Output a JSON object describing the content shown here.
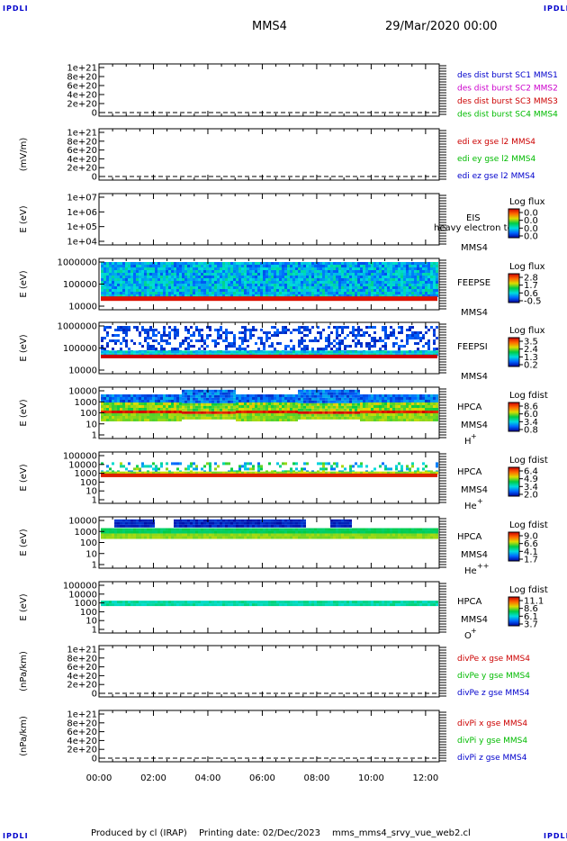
{
  "header": {
    "corner_tl": "IPDLI",
    "corner_tr": "IPDLI",
    "corner_bl": "IPDLI",
    "corner_br": "IPDLI",
    "spacecraft": "MMS4",
    "datetime": "29/Mar/2020 00:00"
  },
  "footer": {
    "producer": "Produced by cl (IRAP)",
    "printing": "Printing date: 02/Dec/2023",
    "script": "mms_mms4_srvy_vue_web2.cl"
  },
  "colors": {
    "blue": "#0000cc",
    "magenta": "#cc00cc",
    "red": "#cc0000",
    "green": "#00bb00",
    "dashed_zero": "#000000"
  },
  "x_axis": {
    "ticks": [
      "00:00",
      "02:00",
      "04:00",
      "06:00",
      "08:00",
      "10:00",
      "12:00"
    ],
    "range_hours": [
      0,
      12.5
    ]
  },
  "chart_data": [
    {
      "type": "line",
      "ylabel": "",
      "yticks": [
        "1e+21",
        "8e+20",
        "6e+20",
        "4e+20",
        "2e+20",
        "0"
      ],
      "legend": [
        {
          "text": "des dist burst SC1 MMS1",
          "color": "#0000cc"
        },
        {
          "text": "des dist burst SC2 MMS2",
          "color": "#cc00cc"
        },
        {
          "text": "des dist burst SC3 MMS3",
          "color": "#cc0000"
        },
        {
          "text": "des dist burst SC4 MMS4",
          "color": "#00bb00"
        }
      ],
      "zero_line": "dashed"
    },
    {
      "type": "line",
      "ylabel": "(mV/m)",
      "yticks": [
        "1e+21",
        "8e+20",
        "6e+20",
        "4e+20",
        "2e+20",
        "0"
      ],
      "legend": [
        {
          "text": "edi ex gse l2 MMS4",
          "color": "#cc0000"
        },
        {
          "text": "edi ey gse l2 MMS4",
          "color": "#00bb00"
        },
        {
          "text": "edi ez gse l2 MMS4",
          "color": "#0000cc"
        }
      ],
      "zero_line": "dashed"
    },
    {
      "type": "heatmap",
      "ylabel": "E (eV)",
      "yticks": [
        "1e+07",
        "1e+06",
        "1e+05",
        "1e+04"
      ],
      "scale": "log",
      "instrument": [
        "EIS",
        "MMS4"
      ],
      "overlay_text": "heavy electron to",
      "cbar_title": "Log flux",
      "cbar_ticks": [
        "0.0",
        "0.0",
        "0.0",
        "0.0"
      ],
      "spectrum": "empty"
    },
    {
      "type": "heatmap",
      "ylabel": "E (eV)",
      "yticks": [
        "1000000",
        "100000",
        "10000"
      ],
      "scale": "log",
      "instrument": [
        "FEEPSE",
        "MMS4"
      ],
      "cbar_title": "Log flux",
      "cbar_ticks": [
        "2.8",
        "1.7",
        "0.6",
        "-0.5"
      ],
      "spectrum": "feeps_e"
    },
    {
      "type": "heatmap",
      "ylabel": "E (eV)",
      "yticks": [
        "1000000",
        "100000",
        "10000"
      ],
      "scale": "log",
      "instrument": [
        "FEEPSI",
        "MMS4"
      ],
      "cbar_title": "Log flux",
      "cbar_ticks": [
        "3.5",
        "2.4",
        "1.3",
        "0.2"
      ],
      "spectrum": "feeps_i"
    },
    {
      "type": "heatmap",
      "ylabel": "E (eV)",
      "yticks": [
        "10000",
        "1000",
        "100",
        "10",
        "1"
      ],
      "scale": "log",
      "instrument": [
        "HPCA",
        "MMS4"
      ],
      "species_base": "H",
      "species_sup": "+",
      "cbar_title": "Log fdist",
      "cbar_ticks": [
        "8.6",
        "6.0",
        "3.4",
        "0.8"
      ],
      "spectrum": "hpca_h"
    },
    {
      "type": "heatmap",
      "ylabel": "E (eV)",
      "yticks": [
        "100000",
        "10000",
        "1000",
        "100",
        "10",
        "1"
      ],
      "scale": "log",
      "instrument": [
        "HPCA",
        "MMS4"
      ],
      "species_base": "He",
      "species_sup": "+",
      "cbar_title": "Log fdist",
      "cbar_ticks": [
        "6.4",
        "4.9",
        "3.4",
        "2.0"
      ],
      "spectrum": "hpca_he1"
    },
    {
      "type": "heatmap",
      "ylabel": "E (eV)",
      "yticks": [
        "10000",
        "1000",
        "100",
        "10",
        "1"
      ],
      "scale": "log",
      "instrument": [
        "HPCA",
        "MMS4"
      ],
      "species_base": "He",
      "species_sup": "++",
      "cbar_title": "Log fdist",
      "cbar_ticks": [
        "9.0",
        "6.6",
        "4.1",
        "1.7"
      ],
      "spectrum": "hpca_he2"
    },
    {
      "type": "heatmap",
      "ylabel": "E (eV)",
      "yticks": [
        "100000",
        "10000",
        "1000",
        "100",
        "10",
        "1"
      ],
      "scale": "log",
      "instrument": [
        "HPCA",
        "MMS4"
      ],
      "species_base": "O",
      "species_sup": "+",
      "cbar_title": "Log fdist",
      "cbar_ticks": [
        "11.1",
        "8.6",
        "6.1",
        "3.7"
      ],
      "spectrum": "hpca_o"
    },
    {
      "type": "line",
      "ylabel": "(nPa/km)",
      "yticks": [
        "1e+21",
        "8e+20",
        "6e+20",
        "4e+20",
        "2e+20",
        "0"
      ],
      "legend": [
        {
          "text": "divPe x gse MMS4",
          "color": "#cc0000"
        },
        {
          "text": "divPe y gse MMS4",
          "color": "#00bb00"
        },
        {
          "text": "divPe z gse MMS4",
          "color": "#0000cc"
        }
      ],
      "zero_line": "dashed"
    },
    {
      "type": "line",
      "ylabel": "(nPa/km)",
      "yticks": [
        "1e+21",
        "8e+20",
        "6e+20",
        "4e+20",
        "2e+20",
        "0"
      ],
      "legend": [
        {
          "text": "divPi x gse MMS4",
          "color": "#cc0000"
        },
        {
          "text": "divPi y gse MMS4",
          "color": "#00bb00"
        },
        {
          "text": "divPi z gse MMS4",
          "color": "#0000cc"
        }
      ],
      "zero_line": "dashed"
    }
  ]
}
